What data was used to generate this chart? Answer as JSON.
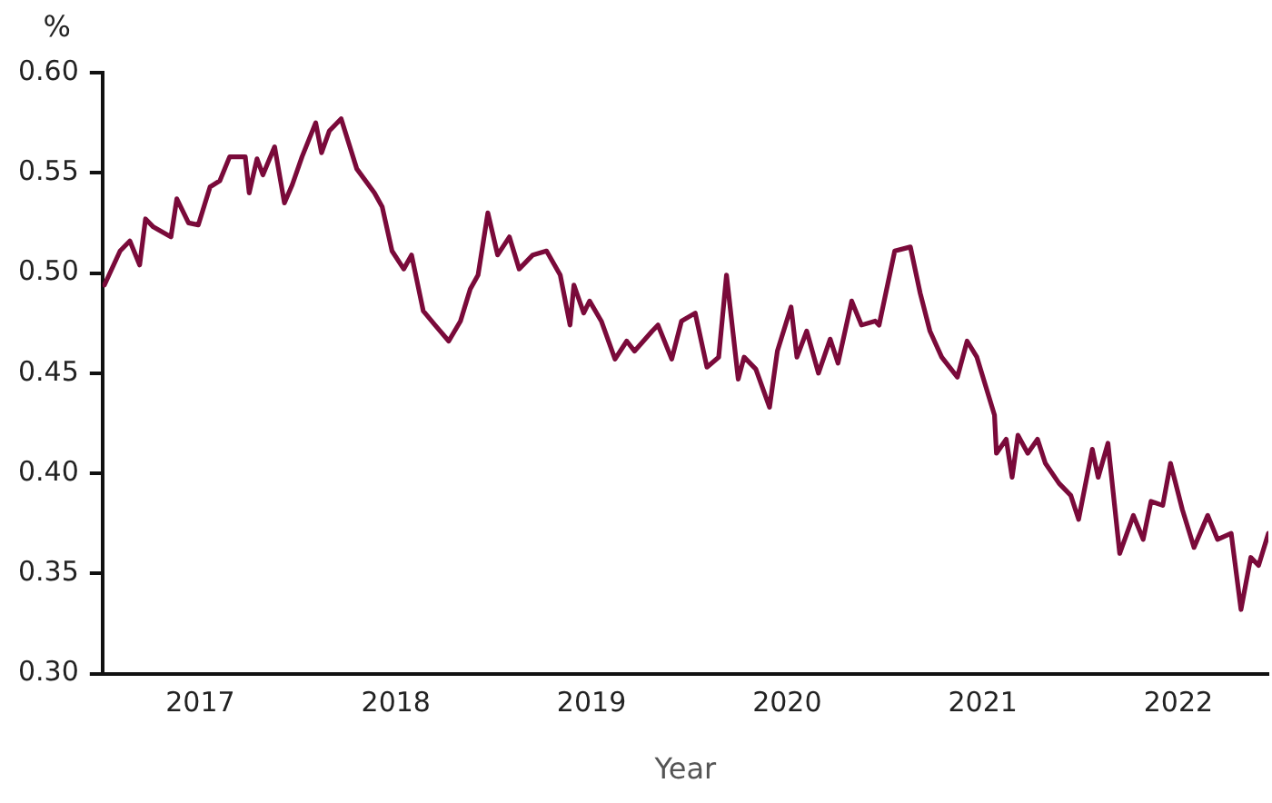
{
  "chart_data": {
    "type": "line",
    "xlabel": "Year",
    "ylabel": "%",
    "x": [
      2017.01,
      2017.09,
      2017.14,
      2017.19,
      2017.22,
      2017.26,
      2017.35,
      2017.38,
      2017.44,
      2017.49,
      2017.55,
      2017.6,
      2017.65,
      2017.73,
      2017.75,
      2017.79,
      2017.82,
      2017.88,
      2017.93,
      2017.97,
      2018.02,
      2018.09,
      2018.12,
      2018.16,
      2018.22,
      2018.3,
      2018.39,
      2018.43,
      2018.48,
      2018.54,
      2018.58,
      2018.64,
      2018.7,
      2018.77,
      2018.83,
      2018.88,
      2018.92,
      2018.97,
      2019.02,
      2019.08,
      2019.13,
      2019.2,
      2019.27,
      2019.34,
      2019.39,
      2019.41,
      2019.46,
      2019.49,
      2019.55,
      2019.62,
      2019.68,
      2019.72,
      2019.81,
      2019.84,
      2019.91,
      2019.96,
      2020.03,
      2020.09,
      2020.15,
      2020.19,
      2020.25,
      2020.28,
      2020.34,
      2020.41,
      2020.45,
      2020.52,
      2020.55,
      2020.6,
      2020.66,
      2020.72,
      2020.76,
      2020.83,
      2020.88,
      2020.95,
      2020.97,
      2021.05,
      2021.13,
      2021.18,
      2021.23,
      2021.29,
      2021.37,
      2021.42,
      2021.47,
      2021.56,
      2021.57,
      2021.62,
      2021.65,
      2021.68,
      2021.73,
      2021.78,
      2021.82,
      2021.89,
      2021.95,
      2021.99,
      2022.06,
      2022.09,
      2022.14,
      2022.2,
      2022.27,
      2022.32,
      2022.36,
      2022.42,
      2022.46,
      2022.52,
      2022.58,
      2022.65,
      2022.7,
      2022.77,
      2022.82,
      2022.87,
      2022.91,
      2022.96
    ],
    "series": [
      {
        "color": "#7a0a3a",
        "values": [
          0.494,
          0.511,
          0.516,
          0.504,
          0.527,
          0.523,
          0.518,
          0.537,
          0.525,
          0.524,
          0.543,
          0.546,
          0.558,
          0.558,
          0.54,
          0.557,
          0.549,
          0.563,
          0.535,
          0.544,
          0.558,
          0.575,
          0.56,
          0.571,
          0.577,
          0.552,
          0.54,
          0.533,
          0.511,
          0.502,
          0.509,
          0.481,
          0.474,
          0.466,
          0.476,
          0.492,
          0.499,
          0.53,
          0.509,
          0.518,
          0.502,
          0.509,
          0.511,
          0.499,
          0.474,
          0.494,
          0.48,
          0.486,
          0.476,
          0.457,
          0.466,
          0.461,
          0.471,
          0.474,
          0.457,
          0.476,
          0.48,
          0.453,
          0.458,
          0.499,
          0.447,
          0.458,
          0.452,
          0.433,
          0.461,
          0.483,
          0.458,
          0.471,
          0.45,
          0.467,
          0.455,
          0.486,
          0.474,
          0.476,
          0.474,
          0.511,
          0.513,
          0.49,
          0.471,
          0.458,
          0.448,
          0.466,
          0.458,
          0.429,
          0.41,
          0.417,
          0.398,
          0.419,
          0.41,
          0.417,
          0.405,
          0.395,
          0.389,
          0.377,
          0.412,
          0.398,
          0.415,
          0.36,
          0.379,
          0.367,
          0.386,
          0.384,
          0.405,
          0.382,
          0.363,
          0.379,
          0.367,
          0.37,
          0.332,
          0.358,
          0.354,
          0.37
        ]
      }
    ],
    "xlim": [
      2017,
      2022.96
    ],
    "xticks": [
      {
        "value": 2017.5,
        "label": "2017"
      },
      {
        "value": 2018.5,
        "label": "2018"
      },
      {
        "value": 2019.5,
        "label": "2019"
      },
      {
        "value": 2020.5,
        "label": "2020"
      },
      {
        "value": 2021.5,
        "label": "2021"
      },
      {
        "value": 2022.5,
        "label": "2022"
      }
    ],
    "ylim": [
      0.3,
      0.6
    ],
    "yticks": [
      {
        "value": 0.3,
        "label": "0.30"
      },
      {
        "value": 0.35,
        "label": "0.35"
      },
      {
        "value": 0.4,
        "label": "0.40"
      },
      {
        "value": 0.45,
        "label": "0.45"
      },
      {
        "value": 0.5,
        "label": "0.50"
      },
      {
        "value": 0.55,
        "label": "0.55"
      },
      {
        "value": 0.6,
        "label": "0.60"
      }
    ],
    "grid": false,
    "legend": false,
    "marker": "none",
    "line_style": "solid"
  }
}
